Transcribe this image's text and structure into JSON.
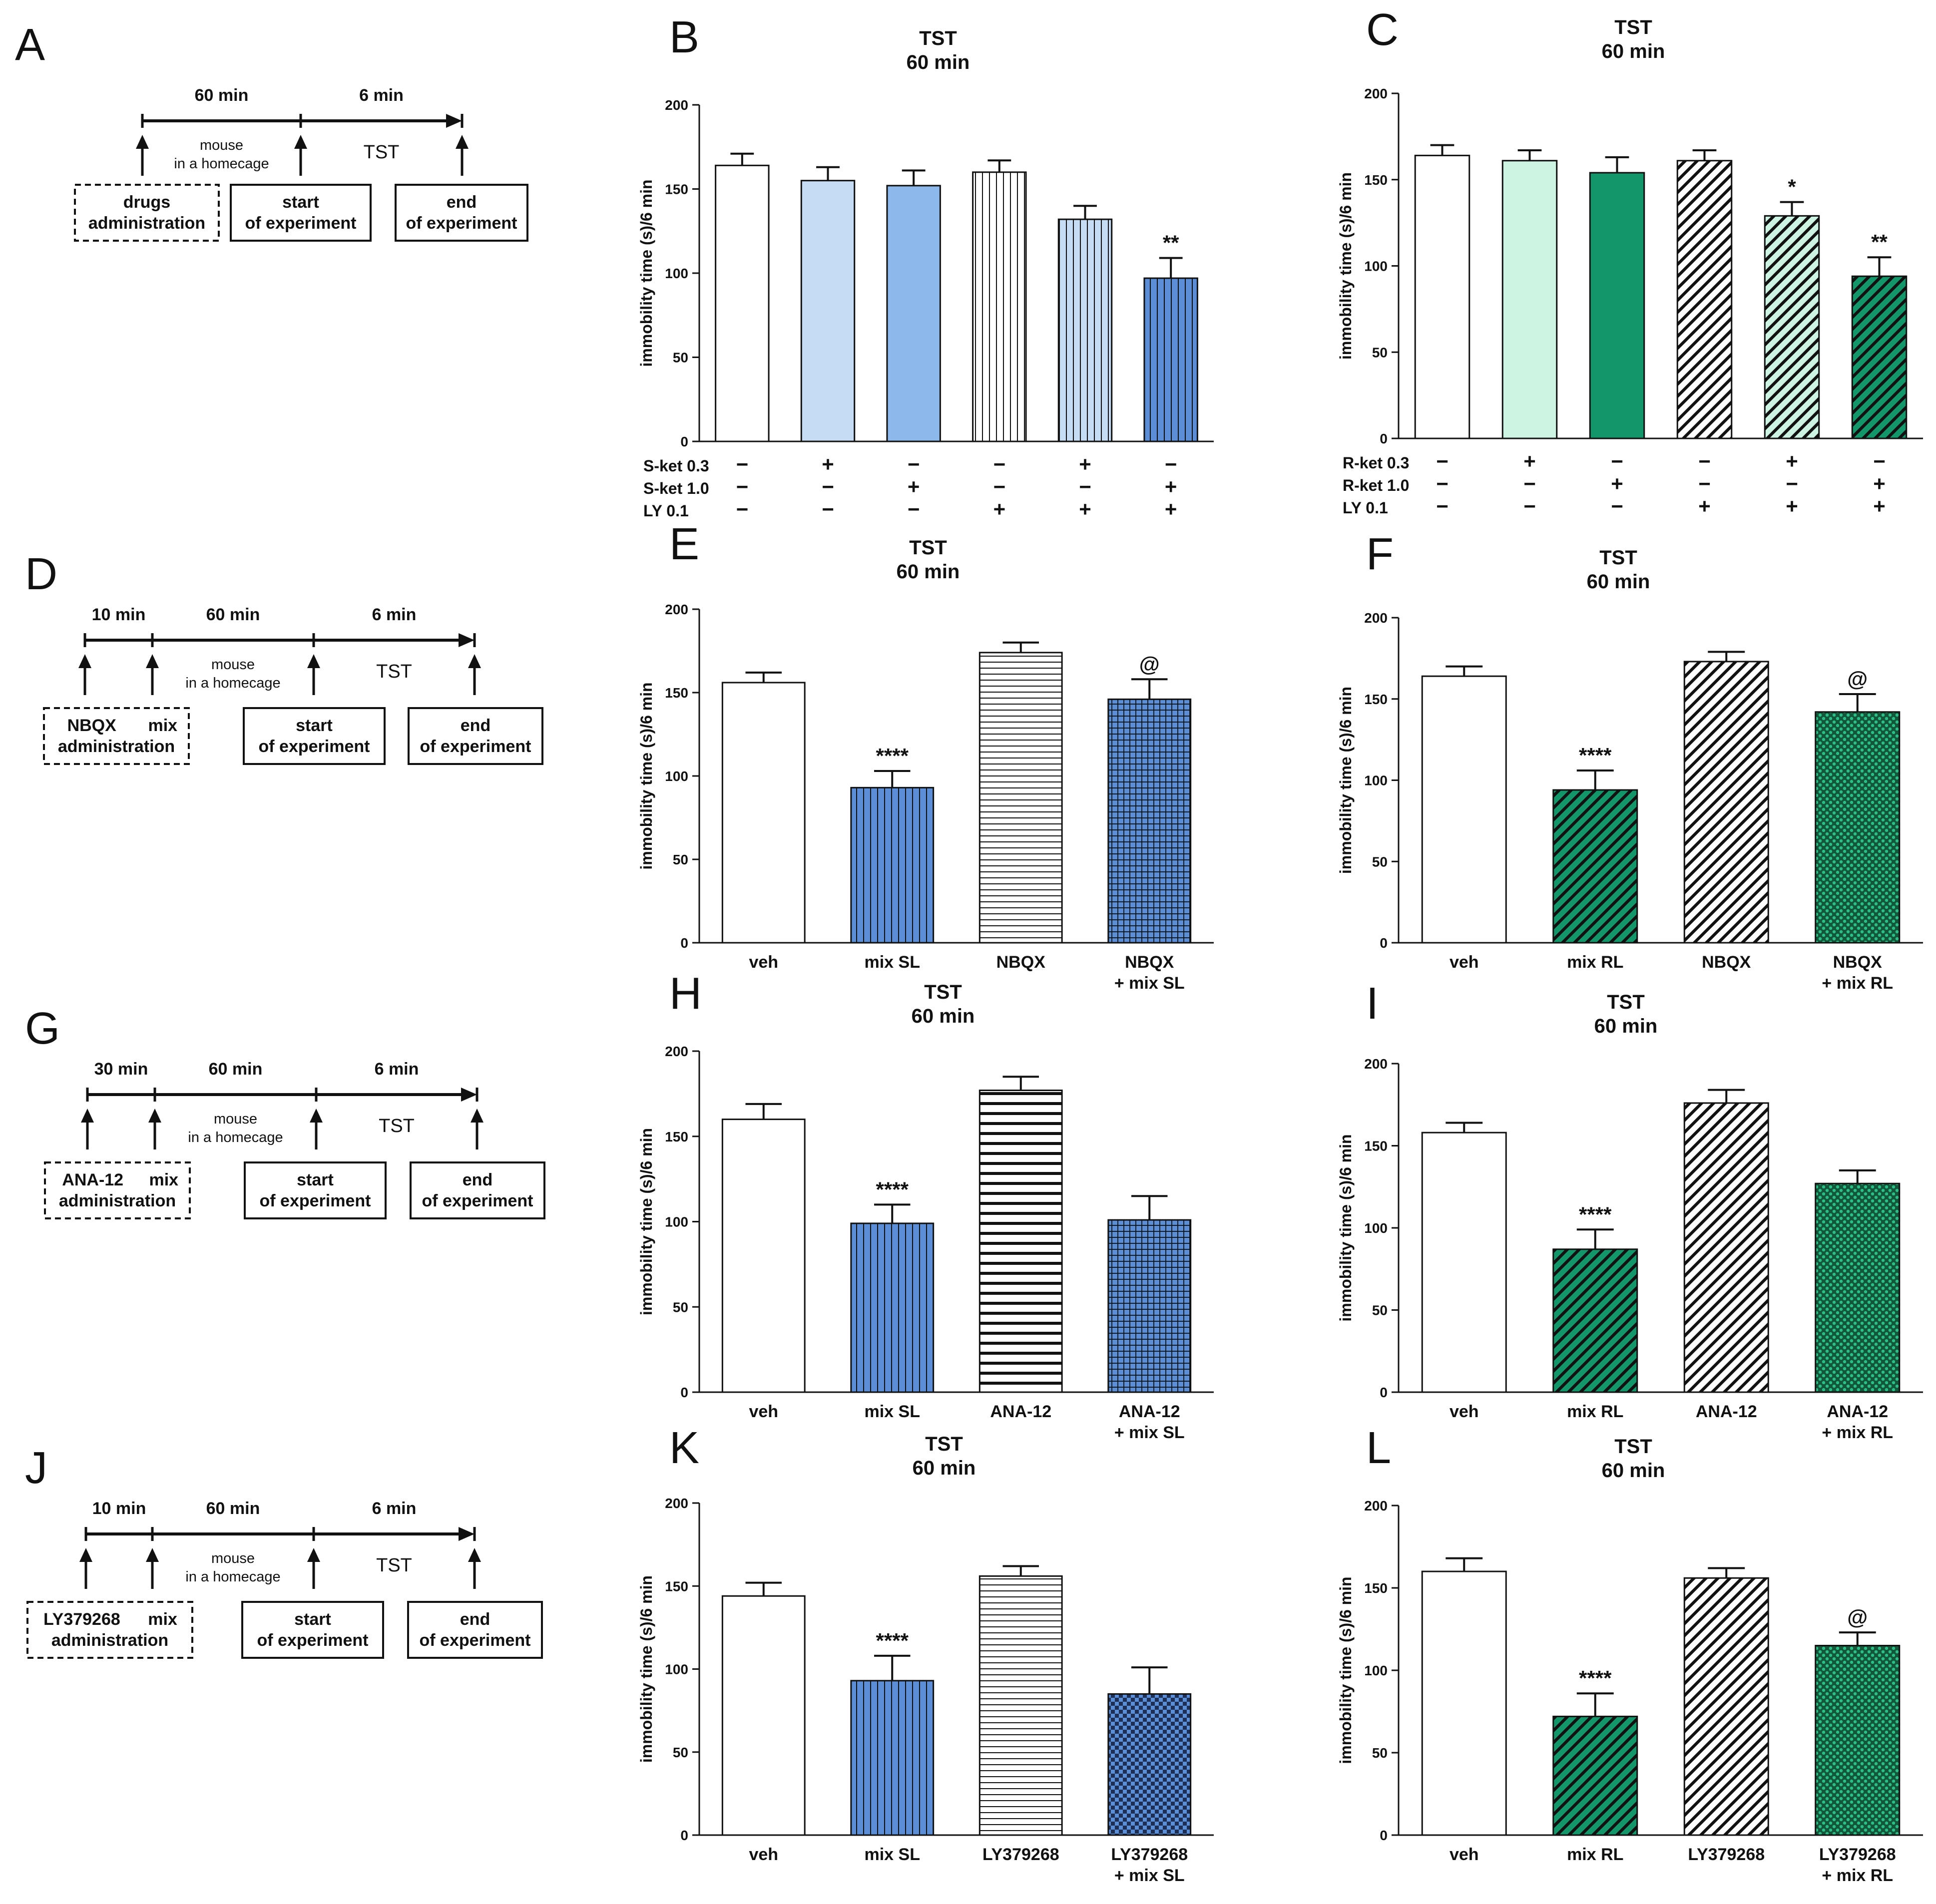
{
  "colors": {
    "white": "#ffffff",
    "s_light": "#c6dcf4",
    "s_mid": "#8cb8ec",
    "s_blue": "#5b8ed6",
    "r_light": "#cdf3e3",
    "r_green": "#13976a",
    "r_dark": "#1a7a52",
    "black": "#111111"
  },
  "timelines": [
    {
      "letter": "A",
      "segments": [
        {
          "label": "60 min",
          "from": "drugs",
          "to": "start"
        },
        {
          "label": "6 min",
          "from": "start",
          "to": "end"
        }
      ],
      "middle_note": [
        "mouse",
        "in a homecage"
      ],
      "test_label": "TST",
      "injection_box": [
        "drugs",
        "administration"
      ],
      "start_box": [
        "start",
        "of experiment"
      ],
      "end_box": [
        "end",
        "of experiment"
      ]
    },
    {
      "letter": "D",
      "segments": [
        {
          "label": "10 min"
        },
        {
          "label": "60 min"
        },
        {
          "label": "6 min"
        }
      ],
      "middle_note": [
        "mouse",
        "in a homecage"
      ],
      "test_label": "TST",
      "injection_box": [
        "NBQX",
        "mix",
        "administration"
      ],
      "start_box": [
        "start",
        "of experiment"
      ],
      "end_box": [
        "end",
        "of experiment"
      ]
    },
    {
      "letter": "G",
      "segments": [
        {
          "label": "30 min"
        },
        {
          "label": "60 min"
        },
        {
          "label": "6 min"
        }
      ],
      "middle_note": [
        "mouse",
        "in a homecage"
      ],
      "test_label": "TST",
      "injection_box": [
        "ANA-12",
        "mix",
        "administration"
      ],
      "start_box": [
        "start",
        "of experiment"
      ],
      "end_box": [
        "end",
        "of experiment"
      ]
    },
    {
      "letter": "J",
      "segments": [
        {
          "label": "10 min"
        },
        {
          "label": "60 min"
        },
        {
          "label": "6 min"
        }
      ],
      "middle_note": [
        "mouse",
        "in a homecage"
      ],
      "test_label": "TST",
      "injection_box": [
        "LY379268",
        "mix",
        "administration"
      ],
      "start_box": [
        "start",
        "of experiment"
      ],
      "end_box": [
        "end",
        "of experiment"
      ]
    }
  ],
  "chart_data": [
    {
      "letter": "B",
      "type": "bar",
      "title": [
        "TST",
        "60 min"
      ],
      "ylabel": "immobility time (s)/6 min",
      "ylim": [
        0,
        200
      ],
      "yticks": [
        0,
        50,
        100,
        150,
        200
      ],
      "values": [
        164,
        155,
        152,
        160,
        132,
        97
      ],
      "errors": [
        7,
        8,
        9,
        7,
        8,
        12
      ],
      "styles": [
        {
          "fill": "white",
          "pattern": "none"
        },
        {
          "fill": "s_light",
          "pattern": "none"
        },
        {
          "fill": "s_mid",
          "pattern": "none"
        },
        {
          "fill": "white",
          "pattern": "vert"
        },
        {
          "fill": "s_light",
          "pattern": "vert"
        },
        {
          "fill": "s_blue",
          "pattern": "vert"
        }
      ],
      "annotations": [
        "",
        "",
        "",
        "",
        "",
        "**"
      ],
      "sign_rows": [
        {
          "label": "S-ket 0.3",
          "signs": [
            "−",
            "+",
            "−",
            "−",
            "+",
            "−"
          ]
        },
        {
          "label": "S-ket 1.0",
          "signs": [
            "−",
            "−",
            "+",
            "−",
            "−",
            "+"
          ]
        },
        {
          "label": "LY 0.1",
          "signs": [
            "−",
            "−",
            "−",
            "+",
            "+",
            "+"
          ]
        }
      ]
    },
    {
      "letter": "C",
      "type": "bar",
      "title": [
        "TST",
        "60 min"
      ],
      "ylabel": "immobility time (s)/6 min",
      "ylim": [
        0,
        200
      ],
      "yticks": [
        0,
        50,
        100,
        150,
        200
      ],
      "values": [
        164,
        161,
        154,
        161,
        129,
        94
      ],
      "errors": [
        6,
        6,
        9,
        6,
        8,
        11
      ],
      "styles": [
        {
          "fill": "white",
          "pattern": "none"
        },
        {
          "fill": "r_light",
          "pattern": "none"
        },
        {
          "fill": "r_green",
          "pattern": "none"
        },
        {
          "fill": "white",
          "pattern": "diag"
        },
        {
          "fill": "r_light",
          "pattern": "diag"
        },
        {
          "fill": "r_green",
          "pattern": "diag"
        }
      ],
      "annotations": [
        "",
        "",
        "",
        "",
        "*",
        "**"
      ],
      "sign_rows": [
        {
          "label": "R-ket 0.3",
          "signs": [
            "−",
            "+",
            "−",
            "−",
            "+",
            "−"
          ]
        },
        {
          "label": "R-ket 1.0",
          "signs": [
            "−",
            "−",
            "+",
            "−",
            "−",
            "+"
          ]
        },
        {
          "label": "LY 0.1",
          "signs": [
            "−",
            "−",
            "−",
            "+",
            "+",
            "+"
          ]
        }
      ]
    },
    {
      "letter": "E",
      "type": "bar",
      "title": [
        "TST",
        "60 min"
      ],
      "ylabel": "immobility time (s)/6 min",
      "ylim": [
        0,
        200
      ],
      "yticks": [
        0,
        50,
        100,
        150,
        200
      ],
      "categories": [
        [
          "veh"
        ],
        [
          "mix SL"
        ],
        [
          "NBQX"
        ],
        [
          "NBQX",
          "+ mix SL"
        ]
      ],
      "values": [
        156,
        93,
        174,
        146
      ],
      "errors": [
        6,
        10,
        6,
        12
      ],
      "styles": [
        {
          "fill": "white",
          "pattern": "none"
        },
        {
          "fill": "s_blue",
          "pattern": "vert"
        },
        {
          "fill": "white",
          "pattern": "horiz"
        },
        {
          "fill": "s_blue",
          "pattern": "grid"
        }
      ],
      "annotations": [
        "",
        "****",
        "",
        "@"
      ]
    },
    {
      "letter": "F",
      "type": "bar",
      "title": [
        "TST",
        "60 min"
      ],
      "ylabel": "immobility time (s)/6 min",
      "ylim": [
        0,
        200
      ],
      "yticks": [
        0,
        50,
        100,
        150,
        200
      ],
      "categories": [
        [
          "veh"
        ],
        [
          "mix RL"
        ],
        [
          "NBQX"
        ],
        [
          "NBQX",
          "+ mix RL"
        ]
      ],
      "values": [
        164,
        94,
        173,
        142
      ],
      "errors": [
        6,
        12,
        6,
        11
      ],
      "styles": [
        {
          "fill": "white",
          "pattern": "none"
        },
        {
          "fill": "r_green",
          "pattern": "diag"
        },
        {
          "fill": "white",
          "pattern": "diag"
        },
        {
          "fill": "r_dark",
          "pattern": "dots"
        }
      ],
      "annotations": [
        "",
        "****",
        "",
        "@"
      ]
    },
    {
      "letter": "H",
      "type": "bar",
      "title": [
        "TST",
        "60 min"
      ],
      "ylabel": "immobility time (s)/6 min",
      "ylim": [
        0,
        200
      ],
      "yticks": [
        0,
        50,
        100,
        150,
        200
      ],
      "categories": [
        [
          "veh"
        ],
        [
          "mix SL"
        ],
        [
          "ANA-12"
        ],
        [
          "ANA-12",
          "+ mix SL"
        ]
      ],
      "values": [
        160,
        99,
        177,
        101
      ],
      "errors": [
        9,
        11,
        8,
        14
      ],
      "styles": [
        {
          "fill": "white",
          "pattern": "none"
        },
        {
          "fill": "s_blue",
          "pattern": "vert"
        },
        {
          "fill": "white",
          "pattern": "horizthick"
        },
        {
          "fill": "s_blue",
          "pattern": "grid"
        }
      ],
      "annotations": [
        "",
        "****",
        "",
        ""
      ]
    },
    {
      "letter": "I",
      "type": "bar",
      "title": [
        "TST",
        "60 min"
      ],
      "ylabel": "immobility time (s)/6 min",
      "ylim": [
        0,
        200
      ],
      "yticks": [
        0,
        50,
        100,
        150,
        200
      ],
      "categories": [
        [
          "veh"
        ],
        [
          "mix RL"
        ],
        [
          "ANA-12"
        ],
        [
          "ANA-12",
          "+ mix RL"
        ]
      ],
      "values": [
        158,
        87,
        176,
        127
      ],
      "errors": [
        6,
        12,
        8,
        8
      ],
      "styles": [
        {
          "fill": "white",
          "pattern": "none"
        },
        {
          "fill": "r_green",
          "pattern": "diag"
        },
        {
          "fill": "white",
          "pattern": "diag"
        },
        {
          "fill": "r_dark",
          "pattern": "dots"
        }
      ],
      "annotations": [
        "",
        "****",
        "",
        ""
      ]
    },
    {
      "letter": "K",
      "type": "bar",
      "title": [
        "TST",
        "60 min"
      ],
      "ylabel": "immobility time (s)/6 min",
      "ylim": [
        0,
        200
      ],
      "yticks": [
        0,
        50,
        100,
        150,
        200
      ],
      "categories": [
        [
          "veh"
        ],
        [
          "mix SL"
        ],
        [
          "LY379268"
        ],
        [
          "LY379268",
          "+ mix SL"
        ]
      ],
      "values": [
        144,
        93,
        156,
        85
      ],
      "errors": [
        8,
        15,
        6,
        16
      ],
      "styles": [
        {
          "fill": "white",
          "pattern": "none"
        },
        {
          "fill": "s_blue",
          "pattern": "vert"
        },
        {
          "fill": "white",
          "pattern": "horiz"
        },
        {
          "fill": "s_blue",
          "pattern": "check"
        }
      ],
      "annotations": [
        "",
        "****",
        "",
        ""
      ]
    },
    {
      "letter": "L",
      "type": "bar",
      "title": [
        "TST",
        "60 min"
      ],
      "ylabel": "immobility time (s)/6 min",
      "ylim": [
        0,
        200
      ],
      "yticks": [
        0,
        50,
        100,
        150,
        200
      ],
      "categories": [
        [
          "veh"
        ],
        [
          "mix RL"
        ],
        [
          "LY379268"
        ],
        [
          "LY379268",
          "+ mix RL"
        ]
      ],
      "values": [
        160,
        72,
        156,
        115
      ],
      "errors": [
        8,
        14,
        6,
        8
      ],
      "styles": [
        {
          "fill": "white",
          "pattern": "none"
        },
        {
          "fill": "r_green",
          "pattern": "diag"
        },
        {
          "fill": "white",
          "pattern": "diag"
        },
        {
          "fill": "r_dark",
          "pattern": "dots"
        }
      ],
      "annotations": [
        "",
        "****",
        "",
        "@"
      ]
    }
  ]
}
